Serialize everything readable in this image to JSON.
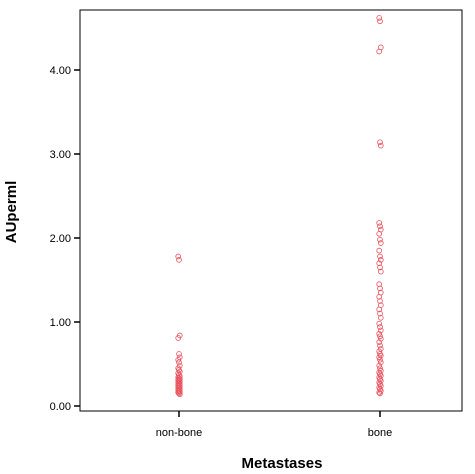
{
  "chart_data": {
    "type": "scatter",
    "title": "",
    "xlabel": "Metastases",
    "ylabel": "AUperml",
    "categories": [
      "non-bone",
      "bone"
    ],
    "ylim": [
      -0.05,
      4.65
    ],
    "yticks": [
      "0.00",
      "1.00",
      "2.00",
      "3.00",
      "4.00"
    ],
    "ytick_values": [
      0,
      1,
      2,
      3,
      4
    ],
    "grid": false,
    "marker_color": "#e8505b",
    "series": [
      {
        "category": "non-bone",
        "values": [
          1.78,
          1.74,
          0.84,
          0.81,
          0.62,
          0.58,
          0.55,
          0.52,
          0.48,
          0.45,
          0.43,
          0.41,
          0.39,
          0.37,
          0.35,
          0.34,
          0.33,
          0.32,
          0.31,
          0.3,
          0.29,
          0.28,
          0.27,
          0.26,
          0.25,
          0.24,
          0.23,
          0.22,
          0.21,
          0.2,
          0.19,
          0.18,
          0.17,
          0.16,
          0.15,
          0.14
        ]
      },
      {
        "category": "bone",
        "values": [
          4.62,
          4.58,
          4.27,
          4.22,
          3.14,
          3.1,
          2.18,
          2.14,
          2.1,
          2.05,
          1.98,
          1.94,
          1.85,
          1.78,
          1.74,
          1.7,
          1.65,
          1.6,
          1.45,
          1.4,
          1.35,
          1.3,
          1.25,
          1.2,
          1.15,
          1.1,
          1.05,
          0.98,
          0.94,
          0.9,
          0.86,
          0.83,
          0.8,
          0.76,
          0.72,
          0.68,
          0.65,
          0.62,
          0.6,
          0.58,
          0.55,
          0.52,
          0.48,
          0.45,
          0.42,
          0.4,
          0.38,
          0.36,
          0.34,
          0.32,
          0.3,
          0.28,
          0.26,
          0.24,
          0.22,
          0.2,
          0.18,
          0.16,
          0.15
        ]
      }
    ]
  }
}
